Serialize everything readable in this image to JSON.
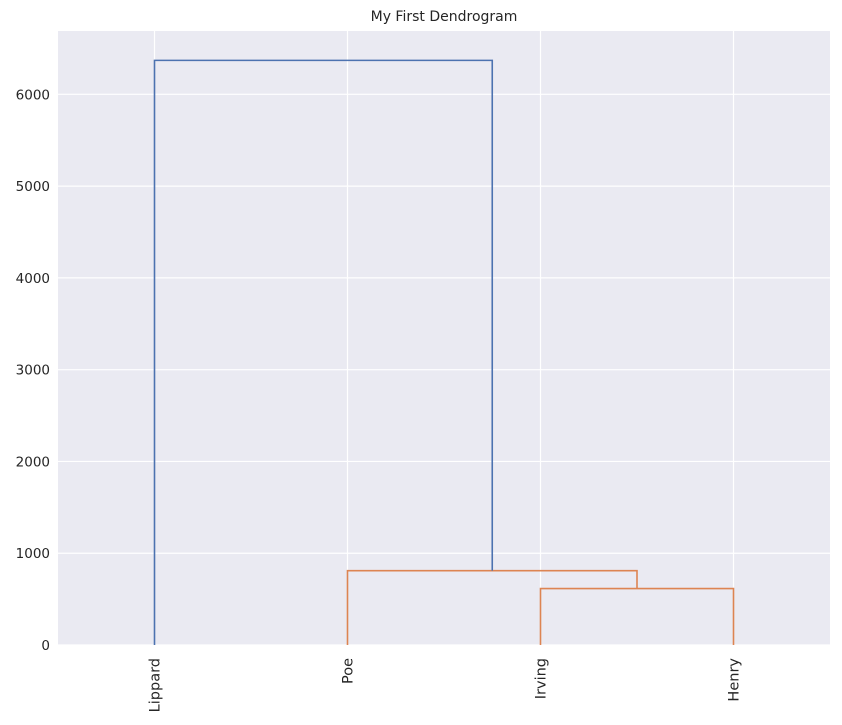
{
  "chart_data": {
    "type": "dendrogram",
    "title": "My First Dendrogram",
    "xlabel": "",
    "ylabel": "",
    "leaves": [
      "Lippard",
      "Poe",
      "Irving",
      "Henry"
    ],
    "ylim": [
      0,
      6690
    ],
    "yticks": [
      0,
      1000,
      2000,
      3000,
      4000,
      5000,
      6000
    ],
    "grid": true,
    "background_color": "#eaeaf2",
    "links": [
      {
        "left": "Irving",
        "right": "Henry",
        "height": 615,
        "color": "#dd8452"
      },
      {
        "left": "Poe",
        "right": "Irving+Henry",
        "height": 810,
        "color": "#dd8452"
      },
      {
        "left": "Lippard",
        "right": "Poe+Irving+Henry",
        "height": 6370,
        "color": "#4c72b0"
      }
    ]
  }
}
